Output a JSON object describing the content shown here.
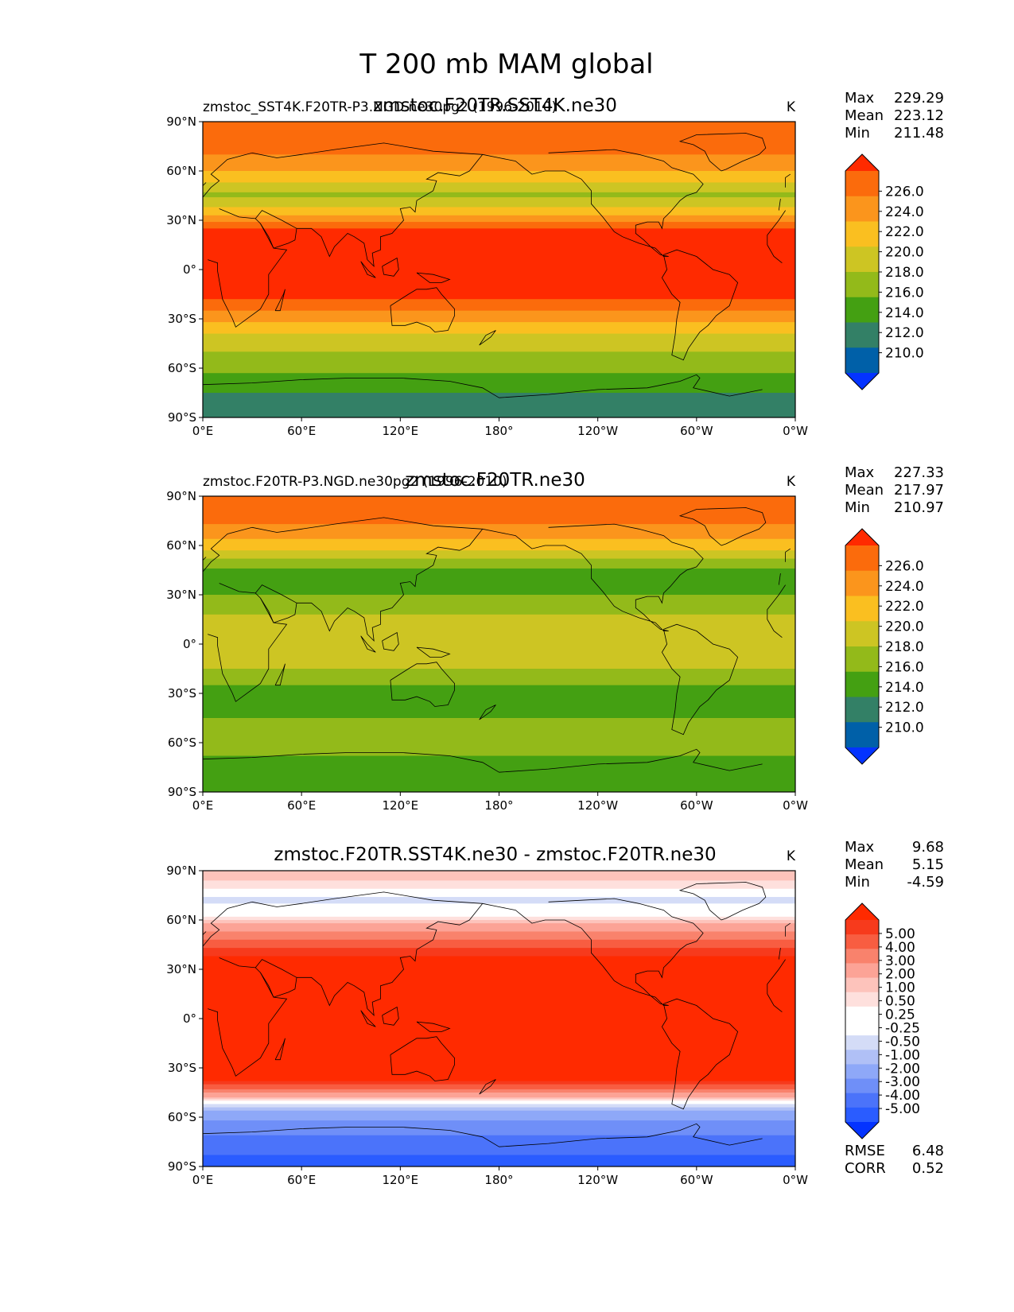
{
  "figure": {
    "title": "T 200 mb MAM global"
  },
  "lat_labels": [
    "90°N",
    "60°N",
    "30°N",
    "0°",
    "30°S",
    "60°S",
    "90°S"
  ],
  "lon_labels": [
    "0°E",
    "60°E",
    "120°E",
    "180°",
    "120°W",
    "60°W",
    "0°W"
  ],
  "stat_names": {
    "max": "Max",
    "mean": "Mean",
    "min": "Min",
    "rmse": "RMSE",
    "corr": "CORR"
  },
  "colors": {
    "abs_levels": [
      "#0433ff",
      "#0060a8",
      "#338066",
      "#44a012",
      "#93ba1a",
      "#cdc523",
      "#fabf20",
      "#fb951c",
      "#fb6b0c",
      "#ff2a00"
    ],
    "diff_levels": [
      "#0433ff",
      "#2a5cff",
      "#4b73fa",
      "#6f8ff8",
      "#8ea8f8",
      "#b0c0f6",
      "#d4dcf7",
      "#ffffff",
      "#ffffff",
      "#fee0dd",
      "#fdc3bb",
      "#fca396",
      "#f9826c",
      "#f85d41",
      "#f73a1c",
      "#ff2a00"
    ]
  },
  "chart_data": [
    {
      "type": "heatmap",
      "projection": "cylindrical-equidistant",
      "title": "zmstoc.F20TR.SST4K.ne30",
      "left_label": "zmstoc_SST4K.F20TR-P3.NGD.ne30pg2 (1996-2010)",
      "units": "K",
      "stats": {
        "max": "229.29",
        "mean": "223.12",
        "min": "211.48"
      },
      "colorbar_ticks": [
        "226.0",
        "224.0",
        "222.0",
        "220.0",
        "218.0",
        "216.0",
        "214.0",
        "212.0",
        "210.0"
      ],
      "levels": [
        210,
        212,
        214,
        216,
        218,
        220,
        222,
        224,
        226
      ],
      "extend": "both",
      "xlim": [
        0,
        360
      ],
      "ylim": [
        -90,
        90
      ],
      "zonal_profile": {
        "lat": [
          90,
          75,
          60,
          45,
          35,
          25,
          15,
          0,
          -15,
          -25,
          -35,
          -45,
          -55,
          -65,
          -75,
          -90
        ],
        "value": [
          225,
          225,
          222,
          217.5,
          221,
          226,
          227,
          227,
          227,
          224,
          221,
          218.5,
          217.5,
          215.5,
          214,
          213.5
        ]
      }
    },
    {
      "type": "heatmap",
      "projection": "cylindrical-equidistant",
      "title": "zmstoc.F20TR.ne30",
      "left_label": "zmstoc.F20TR-P3.NGD.ne30pg2 (1996-2010)",
      "units": "K",
      "stats": {
        "max": "227.33",
        "mean": "217.97",
        "min": "210.97"
      },
      "colorbar_ticks": [
        "226.0",
        "224.0",
        "222.0",
        "220.0",
        "218.0",
        "216.0",
        "214.0",
        "212.0",
        "210.0"
      ],
      "levels": [
        210,
        212,
        214,
        216,
        218,
        220,
        222,
        224,
        226
      ],
      "extend": "both",
      "xlim": [
        0,
        360
      ],
      "ylim": [
        -90,
        90
      ],
      "zonal_profile": {
        "lat": [
          90,
          75,
          60,
          45,
          35,
          25,
          15,
          0,
          -15,
          -25,
          -35,
          -45,
          -55,
          -65,
          -75,
          -90
        ],
        "value": [
          224.5,
          224.5,
          221,
          215.5,
          215,
          217,
          218.5,
          218.5,
          218,
          216,
          214,
          216,
          218,
          216.5,
          215,
          215
        ]
      }
    },
    {
      "type": "heatmap",
      "projection": "cylindrical-equidistant",
      "title": "zmstoc.F20TR.SST4K.ne30 - zmstoc.F20TR.ne30",
      "left_label": "",
      "units": "K",
      "stats": {
        "max": "9.68",
        "mean": "5.15",
        "min": "-4.59",
        "rmse": "6.48",
        "corr": "0.52"
      },
      "colorbar_ticks": [
        "5.00",
        "4.00",
        "3.00",
        "2.00",
        "1.00",
        "0.50",
        "0.25",
        "-0.25",
        "-0.50",
        "-1.00",
        "-2.00",
        "-3.00",
        "-4.00",
        "-5.00"
      ],
      "levels": [
        -5,
        -4,
        -3,
        -2,
        -1,
        -0.5,
        -0.25,
        0,
        0.25,
        0.5,
        1,
        2,
        3,
        4,
        5
      ],
      "extend": "both",
      "xlim": [
        0,
        360
      ],
      "ylim": [
        -90,
        90
      ],
      "zonal_profile": {
        "lat": [
          90,
          80,
          72,
          62,
          55,
          45,
          35,
          20,
          0,
          -20,
          -35,
          -45,
          -50,
          -55,
          -62,
          -75,
          -90
        ],
        "value": [
          0.8,
          0.3,
          -0.4,
          0.2,
          1.5,
          3.5,
          5.5,
          8.5,
          8.5,
          8.5,
          6,
          2,
          0.3,
          -0.8,
          -2,
          -3.5,
          -4.5
        ]
      }
    }
  ]
}
